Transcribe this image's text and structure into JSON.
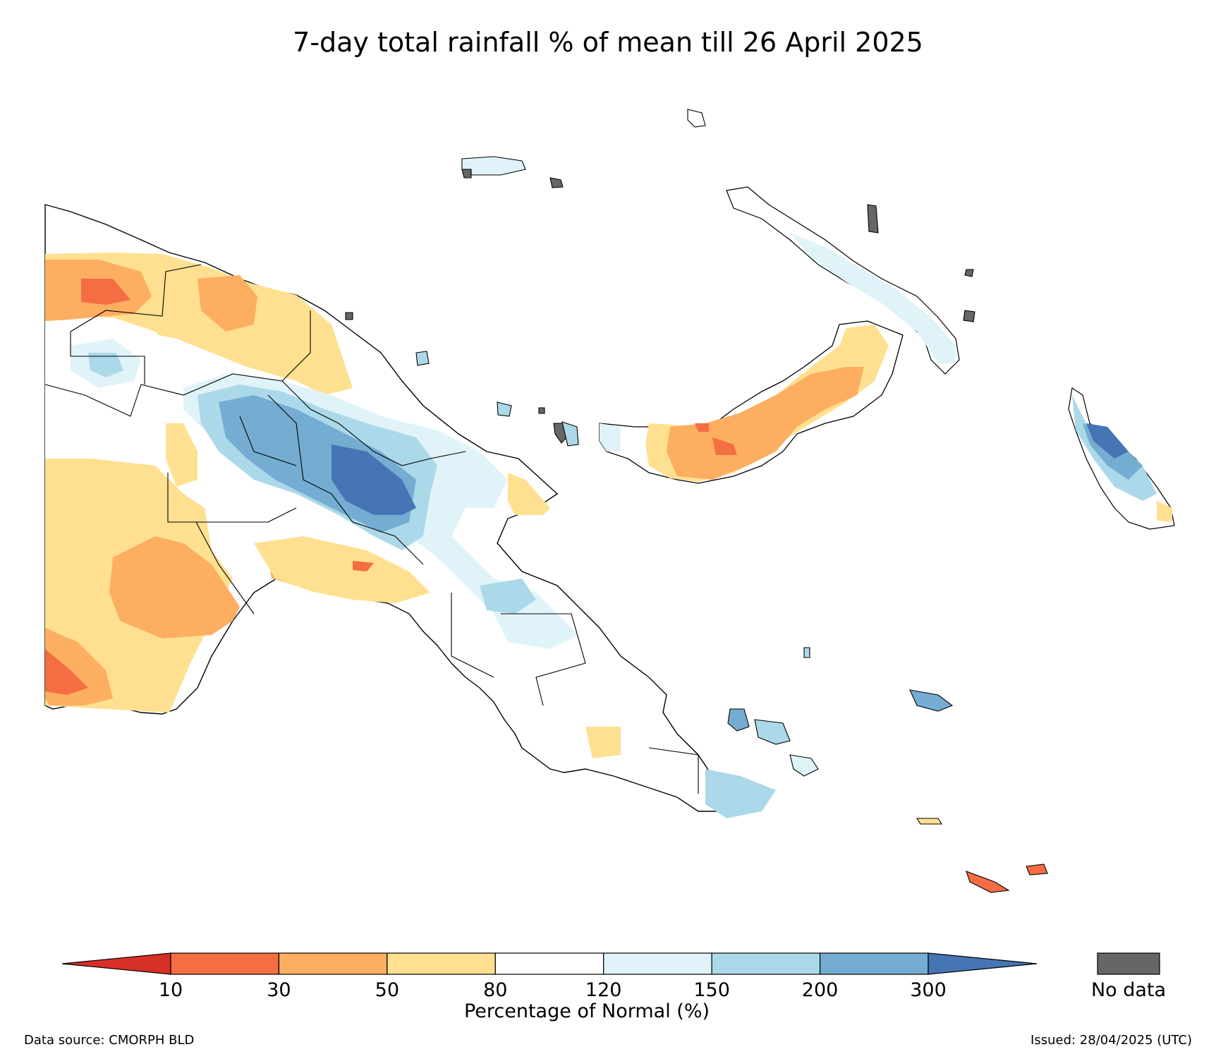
{
  "title": "7-day total rainfall % of mean till 26 April 2025",
  "colorbar": {
    "label": "Percentage of Normal (%)",
    "ticks": [
      "10",
      "30",
      "50",
      "80",
      "120",
      "150",
      "200",
      "300"
    ],
    "colors": [
      "#d73027",
      "#f46d43",
      "#fdae61",
      "#fee090",
      "#ffffff",
      "#e0f3f8",
      "#abd9e9",
      "#74add1",
      "#4575b4"
    ],
    "nodata_label": "No data",
    "nodata_color": "#666666"
  },
  "footer": {
    "source": "Data source: CMORPH BLD",
    "issued": "Issued: 28/04/2025 (UTC)"
  }
}
